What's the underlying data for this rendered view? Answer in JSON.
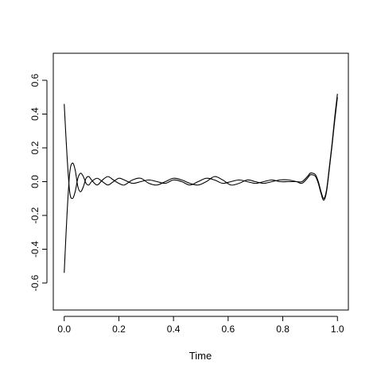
{
  "chart_data": {
    "type": "line",
    "title": "",
    "xlabel": "Time",
    "ylabel": "",
    "xlim": [
      -0.04,
      1.04
    ],
    "ylim": [
      -0.76,
      0.76
    ],
    "x_ticks": [
      0.0,
      0.2,
      0.4,
      0.6,
      0.8,
      1.0
    ],
    "x_tick_labels": [
      "0.0",
      "0.2",
      "0.4",
      "0.6",
      "0.8",
      "1.0"
    ],
    "y_ticks": [
      -0.6,
      -0.4,
      -0.2,
      0.0,
      0.2,
      0.4,
      0.6
    ],
    "y_tick_labels": [
      "-0.6",
      "-0.4",
      "-0.2",
      "0.0",
      "0.2",
      "0.4",
      "0.6"
    ],
    "grid": false,
    "legend": "none",
    "series": [
      {
        "x": [
          0.0,
          0.01,
          0.02,
          0.03,
          0.04,
          0.05,
          0.06,
          0.07,
          0.08,
          0.09,
          0.1,
          0.12,
          0.14,
          0.16,
          0.18,
          0.2,
          0.22,
          0.25,
          0.28,
          0.31,
          0.34,
          0.37,
          0.4,
          0.43,
          0.46,
          0.49,
          0.52,
          0.55,
          0.58,
          0.61,
          0.64,
          0.67,
          0.7,
          0.73,
          0.76,
          0.79,
          0.82,
          0.85,
          0.87,
          0.89,
          0.9,
          0.91,
          0.92,
          0.93,
          0.94,
          0.95,
          0.96,
          0.97,
          0.98,
          0.99,
          1.0
        ],
        "values": [
          0.46,
          0.16,
          -0.06,
          -0.1,
          -0.06,
          0.02,
          0.05,
          0.03,
          -0.01,
          -0.02,
          0.0,
          0.02,
          0.0,
          -0.02,
          0.0,
          0.02,
          0.01,
          -0.01,
          0.0,
          0.01,
          0.0,
          -0.01,
          0.01,
          0.0,
          -0.02,
          0.0,
          0.02,
          0.01,
          -0.01,
          0.0,
          0.01,
          0.0,
          -0.01,
          0.0,
          0.01,
          0.0,
          0.0,
          0.0,
          0.0,
          0.03,
          0.05,
          0.05,
          0.04,
          0.0,
          -0.06,
          -0.1,
          -0.05,
          0.08,
          0.22,
          0.38,
          0.52
        ]
      },
      {
        "x": [
          0.0,
          0.01,
          0.02,
          0.03,
          0.04,
          0.05,
          0.06,
          0.07,
          0.08,
          0.09,
          0.1,
          0.12,
          0.14,
          0.16,
          0.18,
          0.2,
          0.22,
          0.25,
          0.28,
          0.31,
          0.34,
          0.37,
          0.4,
          0.43,
          0.46,
          0.49,
          0.52,
          0.55,
          0.58,
          0.61,
          0.64,
          0.67,
          0.7,
          0.73,
          0.76,
          0.79,
          0.82,
          0.85,
          0.87,
          0.89,
          0.9,
          0.91,
          0.92,
          0.93,
          0.94,
          0.95,
          0.96,
          0.97,
          0.98,
          0.99,
          1.0
        ],
        "values": [
          -0.54,
          -0.2,
          0.05,
          0.11,
          0.07,
          -0.03,
          -0.06,
          -0.03,
          0.02,
          0.03,
          0.01,
          -0.02,
          0.01,
          0.03,
          0.01,
          -0.01,
          -0.02,
          0.01,
          0.02,
          -0.01,
          -0.02,
          0.0,
          0.02,
          0.01,
          -0.01,
          -0.02,
          0.0,
          0.03,
          0.01,
          -0.02,
          -0.01,
          0.01,
          0.0,
          -0.01,
          0.0,
          0.01,
          0.01,
          0.0,
          -0.01,
          0.02,
          0.04,
          0.04,
          0.03,
          -0.01,
          -0.07,
          -0.11,
          -0.06,
          0.07,
          0.21,
          0.36,
          0.5
        ]
      }
    ]
  }
}
